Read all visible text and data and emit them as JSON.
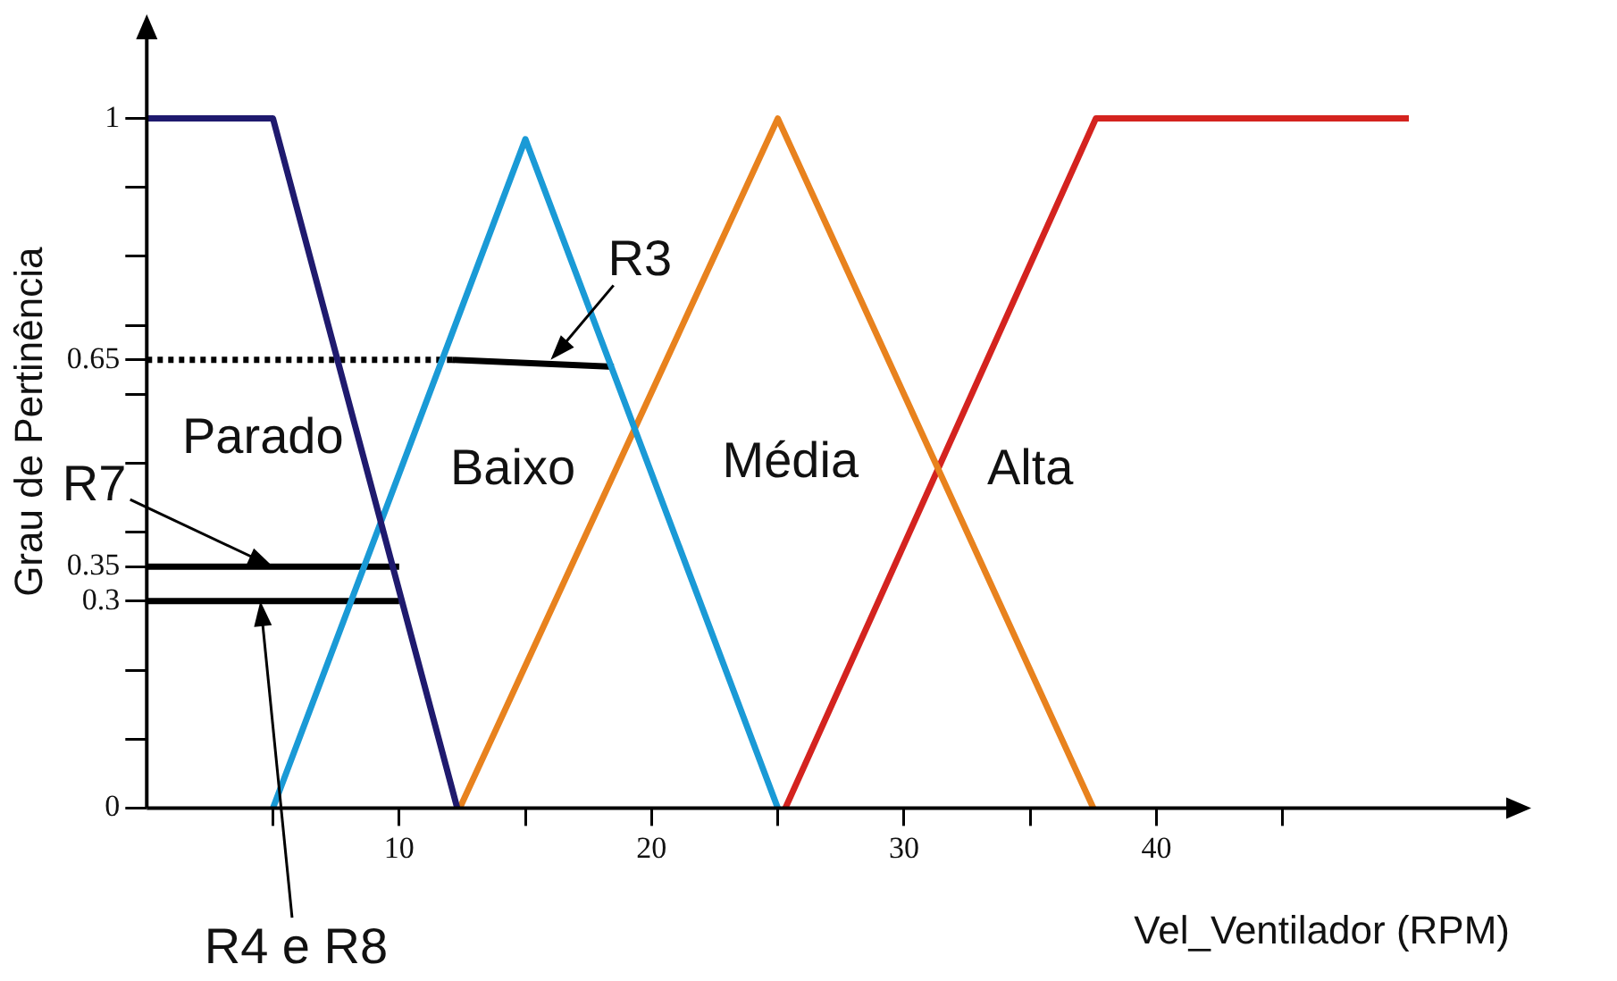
{
  "chart_data": {
    "type": "line",
    "xlabel": "Vel_Ventilador (RPM)",
    "ylabel": "Grau de Pertinência",
    "xlim": [
      0,
      54
    ],
    "ylim": [
      0,
      1.12
    ],
    "xticks": [
      {
        "value": 5,
        "label": null
      },
      10,
      {
        "value": 15,
        "label": null
      },
      20,
      {
        "value": 25,
        "label": null
      },
      30,
      {
        "value": 35,
        "label": null
      },
      40,
      {
        "value": 45,
        "label": null
      }
    ],
    "yticks": [
      0,
      {
        "value": 0.1,
        "label": null
      },
      {
        "value": 0.2,
        "label": null
      },
      0.3,
      0.35,
      {
        "value": 0.4,
        "label": null
      },
      {
        "value": 0.5,
        "label": null
      },
      {
        "value": 0.6,
        "label": null
      },
      0.65,
      {
        "value": 0.7,
        "label": null
      },
      {
        "value": 0.8,
        "label": null
      },
      {
        "value": 0.9,
        "label": null
      },
      1
    ],
    "grid": false,
    "legend": false,
    "marker": "none",
    "series": [
      {
        "name": "Parado",
        "color": "#1f1a6e",
        "x": [
          0,
          5,
          12.3
        ],
        "values": [
          1,
          1,
          0
        ]
      },
      {
        "name": "Baixo",
        "color": "#1a9ad6",
        "x": [
          5,
          15,
          25
        ],
        "values": [
          0,
          0.97,
          0
        ]
      },
      {
        "name": "Média",
        "color": "#e8821e",
        "x": [
          12.4,
          25,
          37.5
        ],
        "values": [
          0,
          1,
          0
        ]
      },
      {
        "name": "Alta",
        "color": "#d4231f",
        "x": [
          25.3,
          37.6,
          50
        ],
        "values": [
          0,
          1,
          1
        ]
      },
      {
        "color": "#000000",
        "x": [
          0,
          12.1
        ],
        "values": [
          0.65,
          0.65
        ],
        "line_style": "dotted"
      },
      {
        "color": "#000000",
        "x": [
          12.1,
          18.5
        ],
        "values": [
          0.65,
          0.64
        ],
        "line_style": "solid"
      },
      {
        "color": "#000000",
        "x": [
          0,
          10
        ],
        "values": [
          0.35,
          0.35
        ],
        "line_style": "solid"
      },
      {
        "color": "#000000",
        "x": [
          0,
          10
        ],
        "values": [
          0.3,
          0.3
        ],
        "line_style": "solid"
      }
    ],
    "annotations": [
      {
        "text": "R3",
        "x": 16,
        "y": 0.65
      },
      {
        "text": "R7",
        "x": 5,
        "y": 0.35
      },
      {
        "text": "R4 e R8",
        "x": 4.5,
        "y": 0.3
      }
    ]
  }
}
